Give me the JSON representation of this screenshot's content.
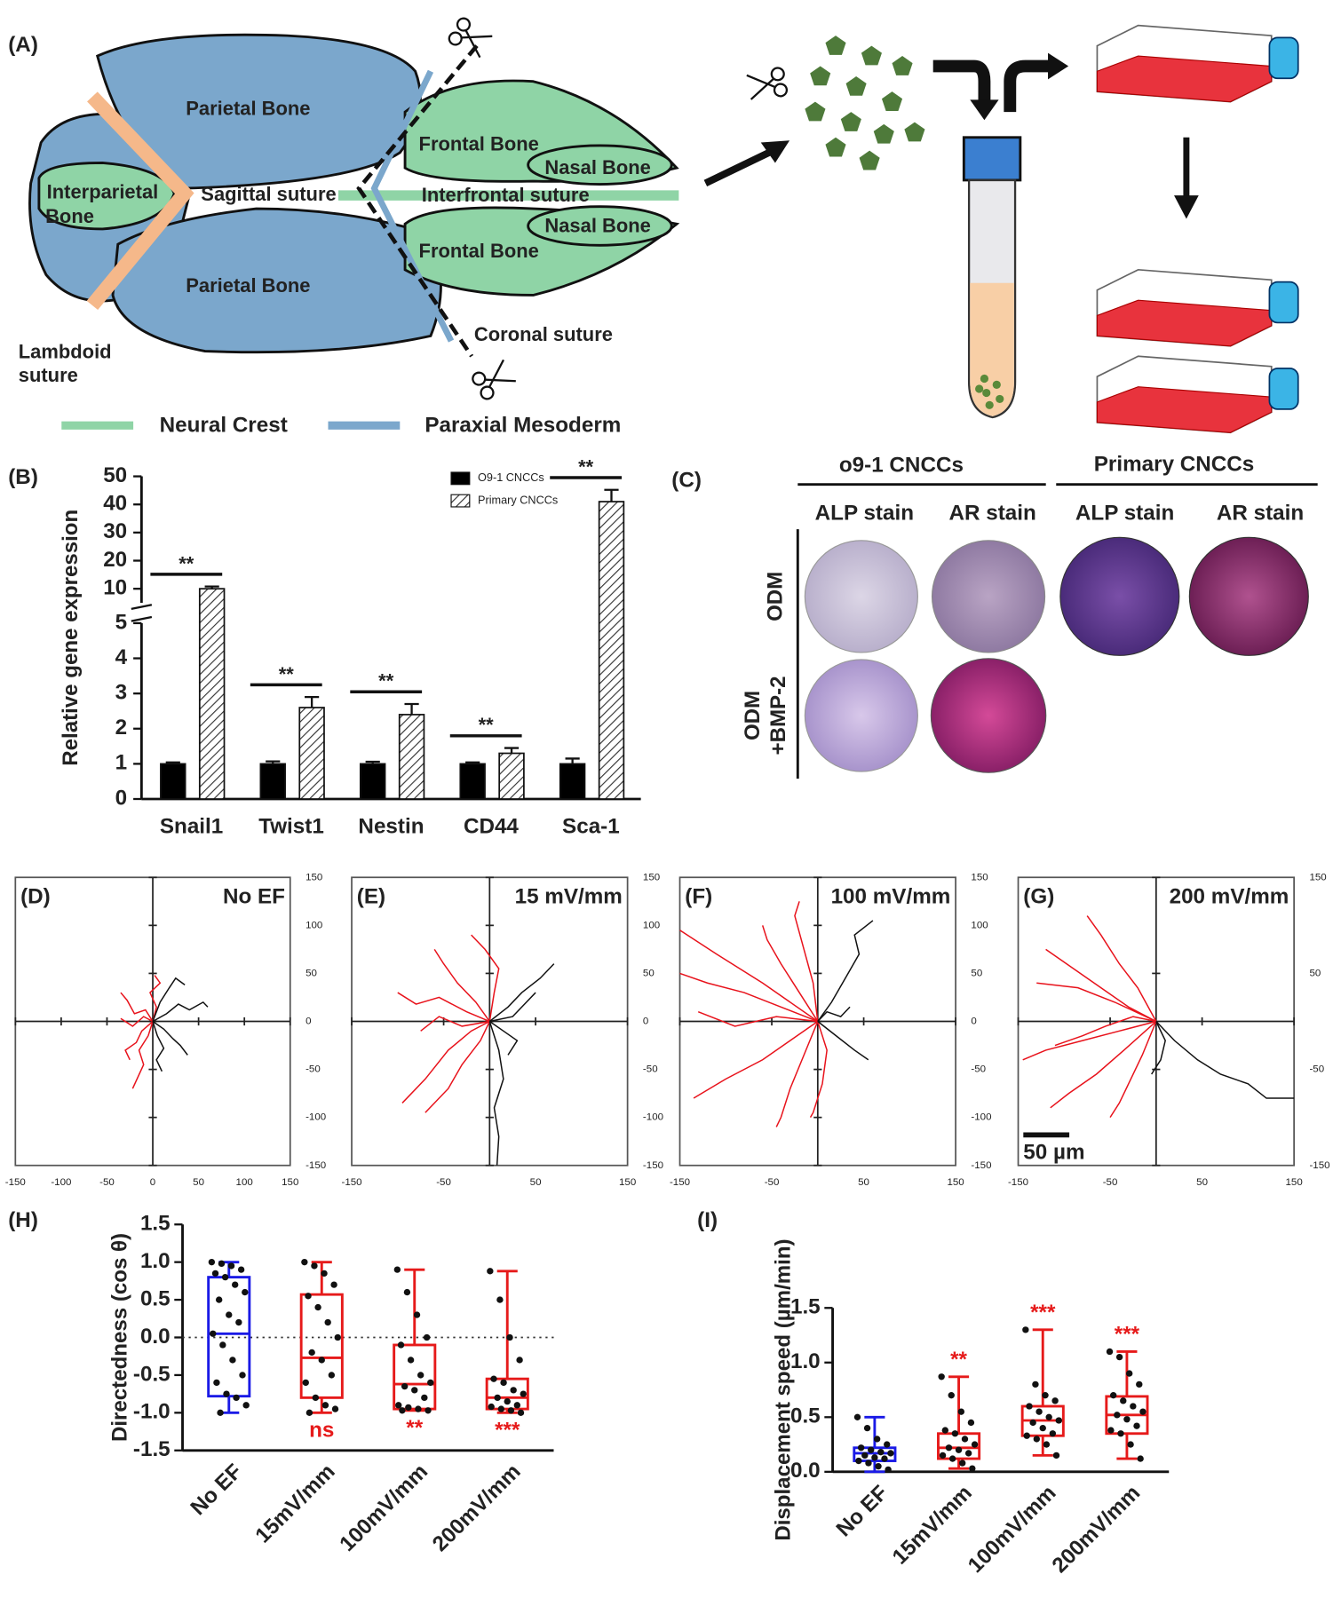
{
  "panel_a": {
    "label": "(A)",
    "parietal": [
      "Parietal Bone",
      "Parietal Bone"
    ],
    "frontal": [
      "Frontal Bone",
      "Frontal Bone"
    ],
    "nasal": [
      "Nasal Bone",
      "Nasal Bone"
    ],
    "interparietal": [
      "Interparietal",
      "Bone"
    ],
    "sutures": [
      "Sagittal suture",
      "Interfrontal suture",
      "Coronal suture"
    ],
    "lambdoid": [
      "Lambdoid",
      "suture"
    ],
    "legend": [
      "Neural Crest",
      "Paraxial Mesoderm"
    ]
  },
  "panel_c": {
    "label": "(C)",
    "groups": [
      "o9-1 CNCCs",
      "Primary CNCCs"
    ],
    "stains": [
      "ALP stain",
      "AR stain",
      "ALP stain",
      "AR stain"
    ],
    "condition_1": "ODM",
    "condition_2": [
      "ODM",
      "+BMP-2"
    ]
  },
  "chart_data": [
    {
      "type": "bar",
      "panel_label": "(B)",
      "y_label": "Relative gene expression",
      "categories": [
        "Snail1",
        "Twist1",
        "Nestin",
        "CD44",
        "Sca-1"
      ],
      "series": [
        {
          "name": "O9-1 CNCCs",
          "color": "#000000",
          "values": [
            1,
            1,
            1,
            1,
            1
          ],
          "errors": [
            0.04,
            0.07,
            0.06,
            0.04,
            0.15
          ]
        },
        {
          "name": "Primary CNCCs",
          "color": "#ffffff",
          "pattern": "hatch",
          "values": [
            10,
            2.6,
            2.4,
            1.3,
            41
          ],
          "errors": [
            0.8,
            0.3,
            0.3,
            0.15,
            4.2
          ]
        }
      ],
      "significance": [
        "**",
        "**",
        "**",
        "**",
        "**"
      ],
      "ylim": [
        0,
        50
      ],
      "y_break": 5,
      "yticks": [
        0,
        1,
        2,
        3,
        4,
        5,
        10,
        20,
        30,
        40,
        50
      ],
      "legend": "upper right"
    },
    {
      "type": "trajectory",
      "panel_label": "(D)",
      "title": "No EF",
      "xlim": [
        -150,
        150
      ],
      "ylim": [
        -150,
        150
      ],
      "xticks": [
        -150,
        -100,
        -50,
        0,
        50,
        100,
        150
      ],
      "yticks": [
        150,
        100,
        50,
        0,
        -50,
        -100,
        -150
      ],
      "series": [
        {
          "color": "#e8121b",
          "x": [
            0,
            -8,
            -20,
            -28,
            -35
          ],
          "y": [
            0,
            12,
            8,
            22,
            30
          ]
        },
        {
          "color": "#e8121b",
          "x": [
            0,
            -12,
            -18,
            -30,
            -25
          ],
          "y": [
            0,
            -10,
            -22,
            -30,
            -40
          ]
        },
        {
          "color": "#e8121b",
          "x": [
            0,
            -5,
            -15,
            -10,
            -22
          ],
          "y": [
            0,
            -15,
            -30,
            -45,
            -70
          ]
        },
        {
          "color": "#e8121b",
          "x": [
            0,
            -10,
            -22,
            -35
          ],
          "y": [
            0,
            5,
            -5,
            3
          ]
        },
        {
          "color": "#e8121b",
          "x": [
            0,
            4,
            -3,
            8,
            2
          ],
          "y": [
            0,
            15,
            30,
            40,
            48
          ]
        },
        {
          "color": "#111111",
          "x": [
            0,
            15,
            28,
            40,
            55,
            60
          ],
          "y": [
            0,
            8,
            18,
            12,
            20,
            15
          ]
        },
        {
          "color": "#111111",
          "x": [
            0,
            12,
            22,
            30,
            38
          ],
          "y": [
            0,
            -8,
            -18,
            -25,
            -35
          ]
        },
        {
          "color": "#111111",
          "x": [
            0,
            8,
            18,
            25,
            35
          ],
          "y": [
            0,
            20,
            35,
            45,
            38
          ]
        },
        {
          "color": "#111111",
          "x": [
            0,
            5,
            12,
            4,
            10
          ],
          "y": [
            0,
            -15,
            -28,
            -40,
            -52
          ]
        }
      ]
    },
    {
      "type": "trajectory",
      "panel_label": "(E)",
      "title": "15 mV/mm",
      "xlim": [
        -150,
        150
      ],
      "ylim": [
        -150,
        150
      ],
      "xticks": [
        -150,
        -50,
        50,
        150
      ],
      "yticks": [
        150,
        100,
        50,
        0,
        -50,
        -100,
        -150
      ],
      "series": [
        {
          "color": "#e8121b",
          "x": [
            0,
            -20,
            -45,
            -70,
            -95
          ],
          "y": [
            0,
            -10,
            -30,
            -60,
            -85
          ]
        },
        {
          "color": "#e8121b",
          "x": [
            0,
            -25,
            -55,
            -80,
            -100
          ],
          "y": [
            0,
            10,
            25,
            18,
            30
          ]
        },
        {
          "color": "#e8121b",
          "x": [
            0,
            -15,
            -35,
            -50,
            -60
          ],
          "y": [
            0,
            20,
            40,
            60,
            75
          ]
        },
        {
          "color": "#e8121b",
          "x": [
            0,
            -10,
            -30,
            -45,
            -70
          ],
          "y": [
            0,
            -20,
            -45,
            -70,
            -95
          ]
        },
        {
          "color": "#e8121b",
          "x": [
            0,
            -30,
            -55,
            -75
          ],
          "y": [
            0,
            -5,
            5,
            -10
          ]
        },
        {
          "color": "#e8121b",
          "x": [
            0,
            5,
            10,
            -5,
            -20
          ],
          "y": [
            0,
            30,
            55,
            75,
            90
          ]
        },
        {
          "color": "#111111",
          "x": [
            0,
            20,
            35,
            55,
            70
          ],
          "y": [
            0,
            15,
            30,
            45,
            60
          ]
        },
        {
          "color": "#111111",
          "x": [
            0,
            10,
            15,
            5,
            10,
            8
          ],
          "y": [
            0,
            -30,
            -60,
            -90,
            -120,
            -150
          ]
        },
        {
          "color": "#111111",
          "x": [
            0,
            25,
            40,
            50
          ],
          "y": [
            0,
            5,
            20,
            30
          ]
        },
        {
          "color": "#111111",
          "x": [
            0,
            15,
            30,
            20
          ],
          "y": [
            0,
            -10,
            -20,
            -35
          ]
        }
      ]
    },
    {
      "type": "trajectory",
      "panel_label": "(F)",
      "title": "100 mV/mm",
      "xlim": [
        -150,
        150
      ],
      "ylim": [
        -150,
        150
      ],
      "xticks": [
        -150,
        -50,
        50,
        150
      ],
      "yticks": [
        150,
        100,
        50,
        0,
        -50,
        -100,
        -150
      ],
      "series": [
        {
          "color": "#e8121b",
          "x": [
            0,
            -40,
            -80,
            -120,
            -150
          ],
          "y": [
            0,
            15,
            30,
            40,
            50
          ]
        },
        {
          "color": "#e8121b",
          "x": [
            0,
            -30,
            -60,
            -100,
            -135
          ],
          "y": [
            0,
            -20,
            -40,
            -60,
            -80
          ]
        },
        {
          "color": "#e8121b",
          "x": [
            0,
            -20,
            -40,
            -55,
            -60
          ],
          "y": [
            0,
            30,
            60,
            85,
            100
          ]
        },
        {
          "color": "#e8121b",
          "x": [
            0,
            -15,
            -30,
            -40,
            -45
          ],
          "y": [
            0,
            -35,
            -70,
            -100,
            -110
          ]
        },
        {
          "color": "#e8121b",
          "x": [
            0,
            -45,
            -90,
            -130
          ],
          "y": [
            0,
            5,
            -5,
            10
          ]
        },
        {
          "color": "#e8121b",
          "x": [
            0,
            -5,
            -15,
            -25,
            -20
          ],
          "y": [
            0,
            40,
            75,
            110,
            125
          ]
        },
        {
          "color": "#e8121b",
          "x": [
            0,
            10,
            5,
            -5,
            -8
          ],
          "y": [
            0,
            -30,
            -65,
            -95,
            -100
          ]
        },
        {
          "color": "#e8121b",
          "x": [
            0,
            -60,
            -110,
            -150
          ],
          "y": [
            0,
            40,
            70,
            95
          ]
        },
        {
          "color": "#111111",
          "x": [
            0,
            15,
            30,
            45,
            40,
            60
          ],
          "y": [
            0,
            20,
            45,
            70,
            90,
            105
          ]
        },
        {
          "color": "#111111",
          "x": [
            0,
            20,
            40,
            55
          ],
          "y": [
            0,
            -15,
            -30,
            -40
          ]
        },
        {
          "color": "#111111",
          "x": [
            0,
            10,
            25,
            35
          ],
          "y": [
            0,
            10,
            5,
            15
          ]
        }
      ]
    },
    {
      "type": "trajectory",
      "panel_label": "(G)",
      "title": "200 mV/mm",
      "xlim": [
        -150,
        150
      ],
      "ylim": [
        -150,
        150
      ],
      "xticks": [
        -150,
        -50,
        50,
        150
      ],
      "yticks": [
        150,
        50,
        -50,
        -150
      ],
      "scale_bar": {
        "value": 50,
        "label": "50 µm"
      },
      "series": [
        {
          "color": "#e8121b",
          "x": [
            0,
            -30,
            -60,
            -90,
            -120
          ],
          "y": [
            0,
            15,
            35,
            55,
            75
          ]
        },
        {
          "color": "#e8121b",
          "x": [
            0,
            -40,
            -80,
            -120,
            -145
          ],
          "y": [
            0,
            -10,
            -20,
            -30,
            -40
          ]
        },
        {
          "color": "#e8121b",
          "x": [
            0,
            -35,
            -65,
            -95,
            -115
          ],
          "y": [
            0,
            -30,
            -55,
            -75,
            -90
          ]
        },
        {
          "color": "#e8121b",
          "x": [
            0,
            -20,
            -40,
            -60,
            -75
          ],
          "y": [
            0,
            35,
            60,
            90,
            110
          ]
        },
        {
          "color": "#e8121b",
          "x": [
            0,
            -15,
            -30,
            -40,
            -50
          ],
          "y": [
            0,
            -35,
            -65,
            -85,
            -100
          ]
        },
        {
          "color": "#e8121b",
          "x": [
            0,
            -45,
            -85,
            -130
          ],
          "y": [
            0,
            20,
            35,
            40
          ]
        },
        {
          "color": "#e8121b",
          "x": [
            0,
            -25,
            -55,
            -80,
            -110
          ],
          "y": [
            0,
            5,
            -5,
            -15,
            -25
          ]
        },
        {
          "color": "#111111",
          "x": [
            0,
            20,
            45,
            70,
            100,
            120,
            150
          ],
          "y": [
            0,
            -20,
            -40,
            -55,
            -65,
            -80,
            -80
          ]
        },
        {
          "color": "#111111",
          "x": [
            0,
            10,
            5,
            -5
          ],
          "y": [
            0,
            -20,
            -40,
            -55
          ]
        }
      ]
    },
    {
      "type": "box",
      "panel_label": "(H)",
      "y_label": "Directedness (cos θ)",
      "categories": [
        "No EF",
        "15mV/mm",
        "100mV/mm",
        "200mV/mm"
      ],
      "colors": [
        "#1a1ae6",
        "#e61a1a",
        "#e61a1a",
        "#e61a1a"
      ],
      "min": [
        -1,
        -1,
        -0.97,
        -1
      ],
      "q1": [
        -0.78,
        -0.8,
        -0.95,
        -0.95
      ],
      "median": [
        0.05,
        -0.27,
        -0.62,
        -0.8
      ],
      "q3": [
        0.8,
        0.57,
        -0.1,
        -0.55
      ],
      "max": [
        1,
        1,
        0.9,
        0.88
      ],
      "points": [
        [
          1,
          0.98,
          0.95,
          0.9,
          0.85,
          0.8,
          0.7,
          0.6,
          0.5,
          0.3,
          0.2,
          0.05,
          -0.1,
          -0.3,
          -0.5,
          -0.6,
          -0.75,
          -0.8,
          -0.9,
          -1
        ],
        [
          1,
          0.95,
          0.85,
          0.7,
          0.55,
          0.4,
          0.2,
          0,
          -0.2,
          -0.3,
          -0.5,
          -0.6,
          -0.8,
          -0.9,
          -0.95,
          -1
        ],
        [
          0.9,
          0.6,
          0.3,
          0,
          -0.1,
          -0.3,
          -0.5,
          -0.6,
          -0.65,
          -0.7,
          -0.8,
          -0.9,
          -0.93,
          -0.95,
          -0.97,
          -0.97
        ],
        [
          0.88,
          0.5,
          0,
          -0.3,
          -0.55,
          -0.6,
          -0.7,
          -0.75,
          -0.8,
          -0.85,
          -0.9,
          -0.92,
          -0.95,
          -0.97,
          -1
        ]
      ],
      "significance": [
        null,
        "ns",
        "**",
        "***"
      ],
      "significance_position": "below",
      "significance_color": "#e61a1a",
      "reference_line": 0,
      "ylim": [
        -1.5,
        1.5
      ],
      "yticks": [
        1.5,
        {
          "value": 1,
          "label": "1.0"
        },
        0.5,
        {
          "value": 0,
          "label": "0.0"
        },
        -0.5,
        {
          "value": -1,
          "label": "-1.0"
        },
        -1.5
      ]
    },
    {
      "type": "box",
      "panel_label": "(I)",
      "y_label": "Displacement speed (µm/min)",
      "categories": [
        "No EF",
        "15mV/mm",
        "100mV/mm",
        "200mV/mm"
      ],
      "colors": [
        "#1a1ae6",
        "#e61a1a",
        "#e61a1a",
        "#e61a1a"
      ],
      "min": [
        0,
        0.03,
        0.15,
        0.12
      ],
      "q1": [
        0.1,
        0.12,
        0.33,
        0.35
      ],
      "median": [
        0.17,
        0.22,
        0.47,
        0.52
      ],
      "q3": [
        0.22,
        0.35,
        0.6,
        0.69
      ],
      "max": [
        0.5,
        0.87,
        1.3,
        1.1
      ],
      "points": [
        [
          0.5,
          0.4,
          0.3,
          0.25,
          0.22,
          0.2,
          0.18,
          0.17,
          0.15,
          0.13,
          0.12,
          0.1,
          0.08,
          0.05,
          0.02
        ],
        [
          0.87,
          0.7,
          0.55,
          0.45,
          0.38,
          0.35,
          0.3,
          0.25,
          0.22,
          0.2,
          0.17,
          0.15,
          0.12,
          0.08,
          0.03
        ],
        [
          1.3,
          0.8,
          0.7,
          0.65,
          0.6,
          0.55,
          0.5,
          0.47,
          0.45,
          0.4,
          0.35,
          0.33,
          0.3,
          0.25,
          0.15
        ],
        [
          1.1,
          1.05,
          0.9,
          0.8,
          0.7,
          0.65,
          0.6,
          0.55,
          0.52,
          0.48,
          0.42,
          0.38,
          0.35,
          0.25,
          0.12
        ]
      ],
      "significance": [
        null,
        "**",
        "***",
        "***"
      ],
      "significance_position": "above",
      "significance_color": "#e61a1a",
      "ylim": [
        0,
        1.5
      ],
      "yticks": [
        {
          "value": 0,
          "label": "0.0"
        },
        0.5,
        {
          "value": 1,
          "label": "1.0"
        },
        1.5
      ]
    }
  ]
}
